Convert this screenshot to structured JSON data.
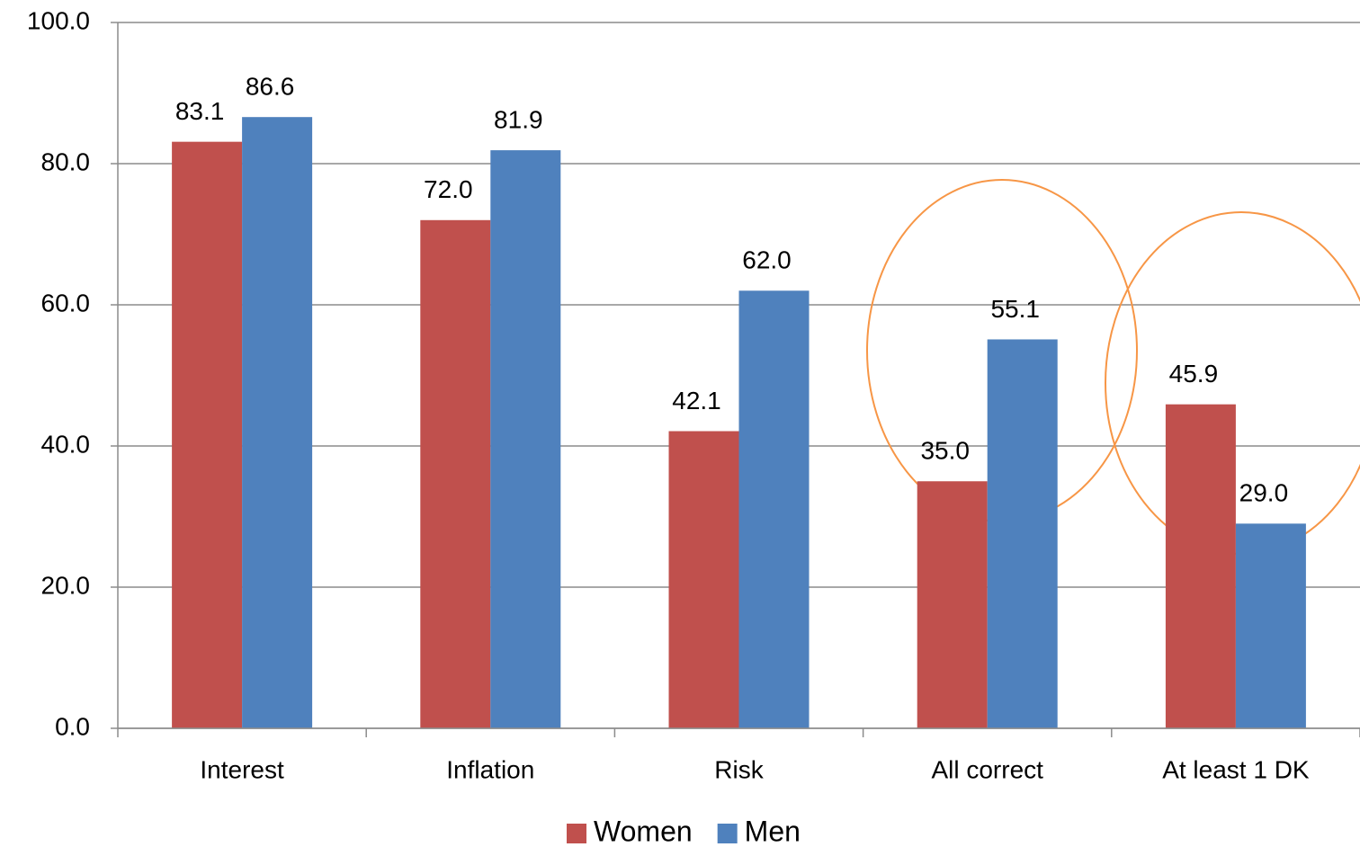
{
  "chart_data": {
    "type": "bar",
    "categories": [
      "Interest",
      "Inflation",
      "Risk",
      "All correct",
      "At least 1 DK"
    ],
    "series": [
      {
        "name": "Women",
        "color": "#c0504d",
        "values": [
          83.1,
          72.0,
          42.1,
          35.0,
          45.9
        ],
        "value_labels": [
          "83.1",
          "72.0",
          "42.1",
          "35.0",
          "45.9"
        ]
      },
      {
        "name": "Men",
        "color": "#4f81bd",
        "values": [
          86.6,
          81.9,
          62.0,
          55.1,
          29.0
        ],
        "value_labels": [
          "86.6",
          "81.9",
          "62.0",
          "55.1",
          "29.0"
        ]
      }
    ],
    "ylim": [
      0,
      100
    ],
    "yticks": [
      {
        "value": 0,
        "label": "0.0"
      },
      {
        "value": 20,
        "label": "20.0"
      },
      {
        "value": 40,
        "label": "40.0"
      },
      {
        "value": 60,
        "label": "60.0"
      },
      {
        "value": 80,
        "label": "80.0"
      },
      {
        "value": 100,
        "label": "100.0"
      }
    ],
    "grid": true,
    "legend": "bottom"
  }
}
